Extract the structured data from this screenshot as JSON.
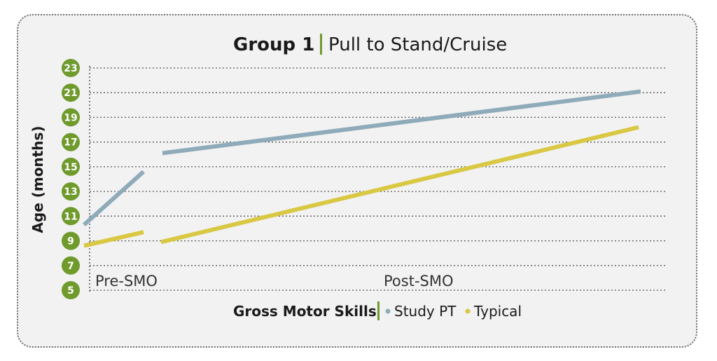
{
  "chart_data": {
    "type": "line",
    "title": "Group 1",
    "subtitle": "Pull to Stand/Cruise",
    "ylabel": "Age (months)",
    "xlabel": "Gross Motor Skills",
    "ylim": [
      5,
      23
    ],
    "yticks": [
      5,
      7,
      9,
      11,
      13,
      15,
      17,
      19,
      21,
      23
    ],
    "x_categories": [
      "Pre-SMO",
      "Post-SMO"
    ],
    "grid": true,
    "legend_position": "bottom",
    "series": [
      {
        "name": "Study PT",
        "color": "#8fabba",
        "segments": [
          {
            "phase": "Pre-SMO",
            "start": 10.3,
            "end": 14.6
          },
          {
            "phase": "Post-SMO",
            "start": 16.1,
            "end": 21.1
          }
        ]
      },
      {
        "name": "Typical",
        "color": "#d9c843",
        "segments": [
          {
            "phase": "Pre-SMO",
            "start": 8.6,
            "end": 9.7
          },
          {
            "phase": "Post-SMO",
            "start": 8.9,
            "end": 18.2
          }
        ]
      }
    ],
    "colors": {
      "tick_badge": "#6f9a2c",
      "title_divider": "#6f9a2c",
      "grid": "#555555",
      "panel_background": "#f2f2f2"
    }
  }
}
